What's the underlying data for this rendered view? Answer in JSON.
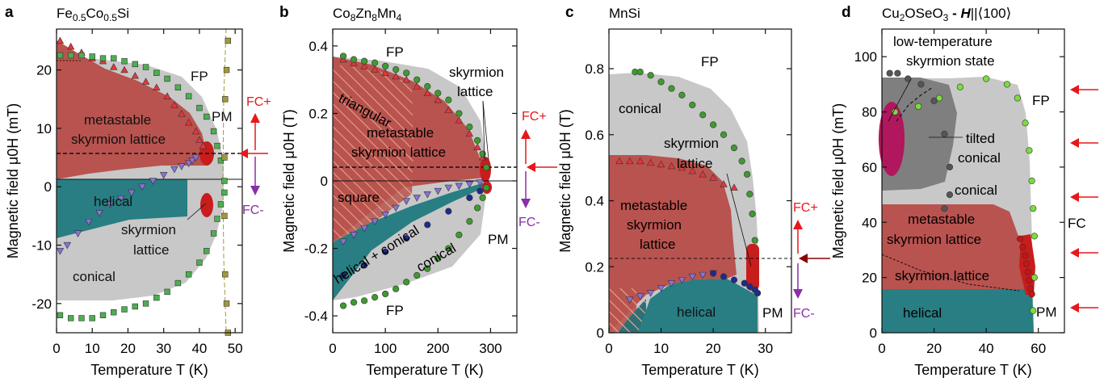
{
  "chart_data": [
    {
      "type": "scatter",
      "panel_label": "a",
      "title": "Fe0.5Co0.5Si",
      "title_parts": [
        "Fe",
        "0.5",
        "Co",
        "0.5",
        "Si"
      ],
      "xlabel": "Temperature T (K)",
      "ylabel": "Magnetic field μ0H (mT)",
      "xlim": [
        0,
        52
      ],
      "ylim": [
        -25,
        27
      ],
      "xticks": [
        0,
        10,
        20,
        30,
        40,
        50
      ],
      "yticks": [
        -20,
        -10,
        0,
        10,
        20
      ],
      "ytick_labels": [
        "-20",
        "-10",
        "0",
        "10",
        "20"
      ],
      "grid": false,
      "region_labels": [
        "metastable",
        "skyrmion lattice",
        "helical",
        "skyrmion",
        "lattice",
        "conical",
        "FP",
        "PM"
      ],
      "arrow_labels": [
        "FC+",
        "FC-"
      ],
      "series": [
        {
          "name": "triangles (up)",
          "marker": "triangle-up",
          "color": "#e8353a",
          "x": [
            1,
            4,
            7,
            10,
            13,
            16,
            19,
            22,
            25,
            28,
            31,
            33,
            35,
            37,
            39,
            40,
            41
          ],
          "y": [
            25,
            24,
            23,
            22,
            21.5,
            20.5,
            20,
            19,
            18,
            17,
            15.5,
            14,
            12.5,
            11,
            9.5,
            8,
            7
          ]
        },
        {
          "name": "triangles (down)",
          "marker": "triangle-down",
          "color": "#8a72d8",
          "x": [
            1,
            3,
            6,
            9,
            12,
            15,
            18,
            21,
            24,
            27,
            30,
            33,
            35,
            37,
            38,
            39
          ],
          "y": [
            -11,
            -10,
            -8,
            -6,
            -4.5,
            -3,
            -2,
            -1,
            0,
            1,
            2,
            3,
            3.5,
            4,
            4.5,
            5
          ]
        },
        {
          "name": "squares (upper boundary)",
          "marker": "square",
          "color": "#4caf50",
          "x": [
            1,
            4,
            7,
            10,
            13,
            16,
            19,
            22,
            25,
            28,
            31,
            34,
            37,
            40,
            42,
            44,
            45,
            46,
            47
          ],
          "y": [
            22.5,
            22.5,
            22.5,
            22.3,
            22,
            22,
            21.5,
            21,
            20.5,
            19.5,
            18.5,
            17,
            15.5,
            13.5,
            12,
            9.5,
            7,
            4.5,
            1
          ]
        },
        {
          "name": "squares (lower boundary)",
          "marker": "square",
          "color": "#4caf50",
          "x": [
            1,
            4,
            7,
            10,
            13,
            16,
            19,
            22,
            25,
            28,
            31,
            34,
            37,
            40,
            42,
            44,
            45,
            46,
            47
          ],
          "y": [
            -22,
            -22.5,
            -22.5,
            -22.5,
            -22,
            -21.5,
            -21,
            -20.5,
            -20,
            -19,
            -18,
            -16.5,
            -15,
            -13,
            -11,
            -8,
            -5.5,
            -3,
            -1
          ]
        },
        {
          "name": "squares (PM boundary)",
          "marker": "square",
          "color": "#a19a3c",
          "x": [
            48,
            47.6,
            47.2,
            47,
            47,
            47.2,
            47.6,
            48
          ],
          "y": [
            -25,
            -20,
            -15,
            -5,
            5,
            15,
            20,
            25
          ]
        }
      ]
    },
    {
      "type": "scatter",
      "panel_label": "b",
      "title": "Co8Zn8Mn4",
      "title_parts": [
        "Co",
        "8",
        "Zn",
        "8",
        "Mn",
        "4"
      ],
      "xlabel": "Temperature T (K)",
      "ylabel": "Magnetic field μ0H (T)",
      "xlim": [
        0,
        350
      ],
      "ylim": [
        -0.45,
        0.45
      ],
      "xticks": [
        0,
        100,
        200,
        300
      ],
      "yticks": [
        -0.4,
        -0.2,
        0,
        0.2,
        0.4
      ],
      "ytick_labels": [
        "-0.4",
        "-0.2",
        "0",
        "0.2",
        "0.4"
      ],
      "grid": false,
      "region_labels": [
        "FP",
        "FP",
        "triangular",
        "metastable",
        "skyrmion lattice",
        "square",
        "helical + conical",
        "conical",
        "skyrmion",
        "lattice",
        "PM"
      ],
      "arrow_labels": [
        "FC+",
        "FC-"
      ],
      "series": [
        {
          "name": "triangles (up)",
          "marker": "triangle-up",
          "color": "#e8353a",
          "x": [
            20,
            40,
            60,
            80,
            100,
            120,
            140,
            160,
            180,
            200,
            220,
            240,
            260,
            275,
            285
          ],
          "y": [
            0.36,
            0.35,
            0.34,
            0.33,
            0.32,
            0.31,
            0.3,
            0.28,
            0.26,
            0.24,
            0.21,
            0.18,
            0.14,
            0.1,
            0.07
          ]
        },
        {
          "name": "triangles (down)",
          "marker": "triangle-down",
          "color": "#8a72d8",
          "x": [
            20,
            40,
            60,
            80,
            100,
            120,
            140,
            160,
            180,
            200,
            220,
            240,
            260,
            280
          ],
          "y": [
            -0.18,
            -0.16,
            -0.14,
            -0.12,
            -0.1,
            -0.08,
            -0.06,
            -0.05,
            -0.04,
            -0.03,
            -0.02,
            -0.015,
            -0.01,
            -0.005
          ]
        },
        {
          "name": "circles (upper)",
          "marker": "circle",
          "color": "#3f9a2f",
          "x": [
            20,
            40,
            60,
            80,
            100,
            120,
            140,
            160,
            180,
            200,
            220,
            240,
            260,
            275,
            285,
            292
          ],
          "y": [
            0.37,
            0.36,
            0.355,
            0.35,
            0.34,
            0.33,
            0.32,
            0.3,
            0.28,
            0.26,
            0.24,
            0.2,
            0.16,
            0.12,
            0.08,
            0.04
          ]
        },
        {
          "name": "circles (lower)",
          "marker": "circle",
          "color": "#3f9a2f",
          "x": [
            20,
            40,
            60,
            80,
            100,
            120,
            140,
            160,
            180,
            200,
            220,
            240,
            260,
            275,
            285,
            292
          ],
          "y": [
            -0.37,
            -0.36,
            -0.355,
            -0.345,
            -0.335,
            -0.32,
            -0.3,
            -0.28,
            -0.26,
            -0.23,
            -0.2,
            -0.16,
            -0.12,
            -0.08,
            -0.05,
            -0.02
          ]
        },
        {
          "name": "circles (helical boundary)",
          "marker": "circle",
          "color": "#1e2a8c",
          "x": [
            20,
            60,
            100,
            140,
            180,
            220,
            260,
            280
          ],
          "y": [
            -0.28,
            -0.25,
            -0.21,
            -0.17,
            -0.13,
            -0.09,
            -0.05,
            -0.03
          ]
        }
      ]
    },
    {
      "type": "scatter",
      "panel_label": "c",
      "title": "MnSi",
      "xlabel": "Temperature T (K)",
      "ylabel": "Magnetic field μ0H (T)",
      "xlim": [
        0,
        35
      ],
      "ylim": [
        0,
        0.92
      ],
      "xticks": [
        0,
        10,
        20,
        30
      ],
      "yticks": [
        0,
        0.2,
        0.4,
        0.6,
        0.8
      ],
      "ytick_labels": [
        "0",
        "0.2",
        "0.4",
        "0.6",
        "0.8"
      ],
      "grid": false,
      "region_labels": [
        "FP",
        "conical",
        "skyrmion",
        "lattice",
        "metastable",
        "skyrmion",
        "lattice",
        "helical",
        "PM"
      ],
      "arrow_labels": [
        "FC+",
        "FC-"
      ],
      "series": [
        {
          "name": "circles (FP boundary)",
          "marker": "circle",
          "color": "#3f9a2f",
          "x": [
            5,
            6,
            8,
            10,
            12,
            14,
            16,
            18,
            20,
            22,
            24,
            25.5,
            26.5,
            27,
            27.5,
            28
          ],
          "y": [
            0.79,
            0.79,
            0.78,
            0.76,
            0.74,
            0.72,
            0.69,
            0.66,
            0.63,
            0.6,
            0.56,
            0.52,
            0.48,
            0.42,
            0.36,
            0.28
          ]
        },
        {
          "name": "triangles (up)",
          "marker": "triangle-up",
          "color": "#e8353a",
          "x": [
            2,
            4,
            6,
            8,
            10,
            12,
            14,
            16,
            18,
            20,
            22,
            24
          ],
          "y": [
            0.52,
            0.52,
            0.52,
            0.515,
            0.51,
            0.505,
            0.5,
            0.49,
            0.48,
            0.47,
            0.45,
            0.44
          ]
        },
        {
          "name": "triangles (down)",
          "marker": "triangle-down",
          "color": "#8a72d8",
          "x": [
            4,
            6,
            8,
            10,
            12,
            14,
            16,
            18,
            20
          ],
          "y": [
            0.1,
            0.11,
            0.12,
            0.135,
            0.15,
            0.16,
            0.17,
            0.175,
            0.18
          ]
        },
        {
          "name": "circles (helical boundary)",
          "marker": "circle",
          "color": "#1e2a8c",
          "x": [
            20,
            22,
            24,
            26,
            27,
            28,
            28.5
          ],
          "y": [
            0.18,
            0.17,
            0.16,
            0.15,
            0.14,
            0.13,
            0.12
          ]
        }
      ]
    },
    {
      "type": "scatter",
      "panel_label": "d",
      "title": "Cu2OSeO3 - H||⟨100⟩",
      "title_parts": [
        "Cu",
        "2",
        "OSeO",
        "3",
        " - ",
        "H",
        "||⟨100⟩"
      ],
      "xlabel": "Temperature T (K)",
      "ylabel": "Magnetic field μ0H (mT)",
      "xlim": [
        0,
        70
      ],
      "ylim": [
        0,
        110
      ],
      "xticks": [
        0,
        20,
        40,
        60
      ],
      "yticks": [
        0,
        20,
        40,
        60,
        80,
        100
      ],
      "ytick_labels": [
        "0",
        "20",
        "40",
        "60",
        "80",
        "100"
      ],
      "grid": false,
      "region_labels": [
        "low-temperature",
        "skyrmion state",
        "FP",
        "tilted",
        "conical",
        "conical",
        "metastable",
        "skyrmion lattice",
        "skyrmion lattice",
        "helical",
        "PM",
        "FC"
      ],
      "series": [
        {
          "name": "circles (FP boundary)",
          "marker": "circle",
          "color": "#7ddc3c",
          "x": [
            5,
            14,
            22,
            30,
            40,
            48,
            52,
            55,
            56.5,
            57.5,
            58,
            58.5,
            58.5,
            58
          ],
          "y": [
            80,
            82,
            85,
            89,
            92,
            90,
            85,
            76,
            66,
            55,
            45,
            35,
            20,
            8
          ]
        },
        {
          "name": "circles (tilted conical boundary)",
          "marker": "circle",
          "color": "#555555",
          "x": [
            3,
            6,
            10,
            15,
            20,
            24,
            26,
            26,
            24
          ],
          "y": [
            94,
            94,
            92,
            90,
            84,
            72,
            60,
            50,
            45
          ]
        },
        {
          "name": "circles (skyrmion lattice)",
          "marker": "circle",
          "color": "#cc1111",
          "x": [
            53,
            54,
            55,
            55.5,
            56,
            56.5,
            57,
            57.5
          ],
          "y": [
            34,
            31,
            28,
            25,
            22,
            19,
            16,
            14
          ]
        }
      ]
    }
  ]
}
